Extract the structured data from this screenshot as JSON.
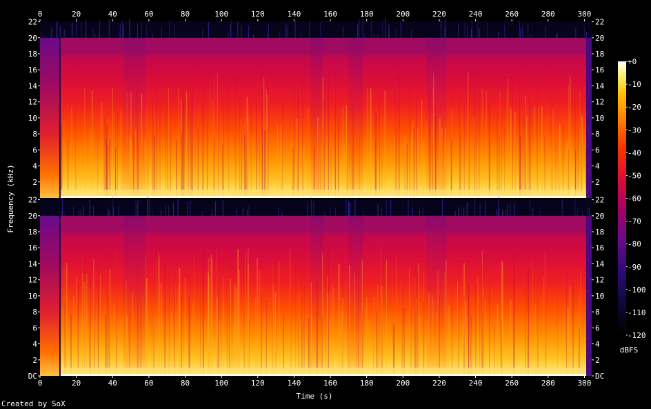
{
  "chart_data": {
    "type": "heatmap",
    "title": "",
    "xlabel": "Time (s)",
    "ylabel": "Frequency (kHz)",
    "xlim": [
      0,
      304
    ],
    "ylim_khz": [
      0,
      22.05
    ],
    "x_ticks": [
      0,
      20,
      40,
      60,
      80,
      100,
      120,
      140,
      160,
      180,
      200,
      220,
      240,
      260,
      280,
      300
    ],
    "y_tick_labels": [
      "DC",
      "2",
      "4",
      "6",
      "8",
      "10",
      "12",
      "14",
      "16",
      "18",
      "20",
      "22"
    ],
    "y_tick_values": [
      0,
      2,
      4,
      6,
      8,
      10,
      12,
      14,
      16,
      18,
      20,
      22
    ],
    "channels": 2,
    "spectral_cutoff_khz": 20,
    "content_start_s": 11,
    "content_end_s": 301,
    "quiet_sections_s": [
      [
        0,
        11
      ],
      [
        46,
        58
      ],
      [
        149,
        156
      ],
      [
        170,
        178
      ],
      [
        213,
        224
      ]
    ],
    "colorbar": {
      "label": "dBFS",
      "ticks": [
        "+0",
        "-10",
        "-20",
        "-30",
        "-40",
        "-50",
        "-60",
        "-70",
        "-80",
        "-90",
        "-100",
        "-110",
        "-120"
      ],
      "range_db": [
        -120,
        0
      ]
    }
  },
  "footer": {
    "credit": "Created by SoX"
  }
}
